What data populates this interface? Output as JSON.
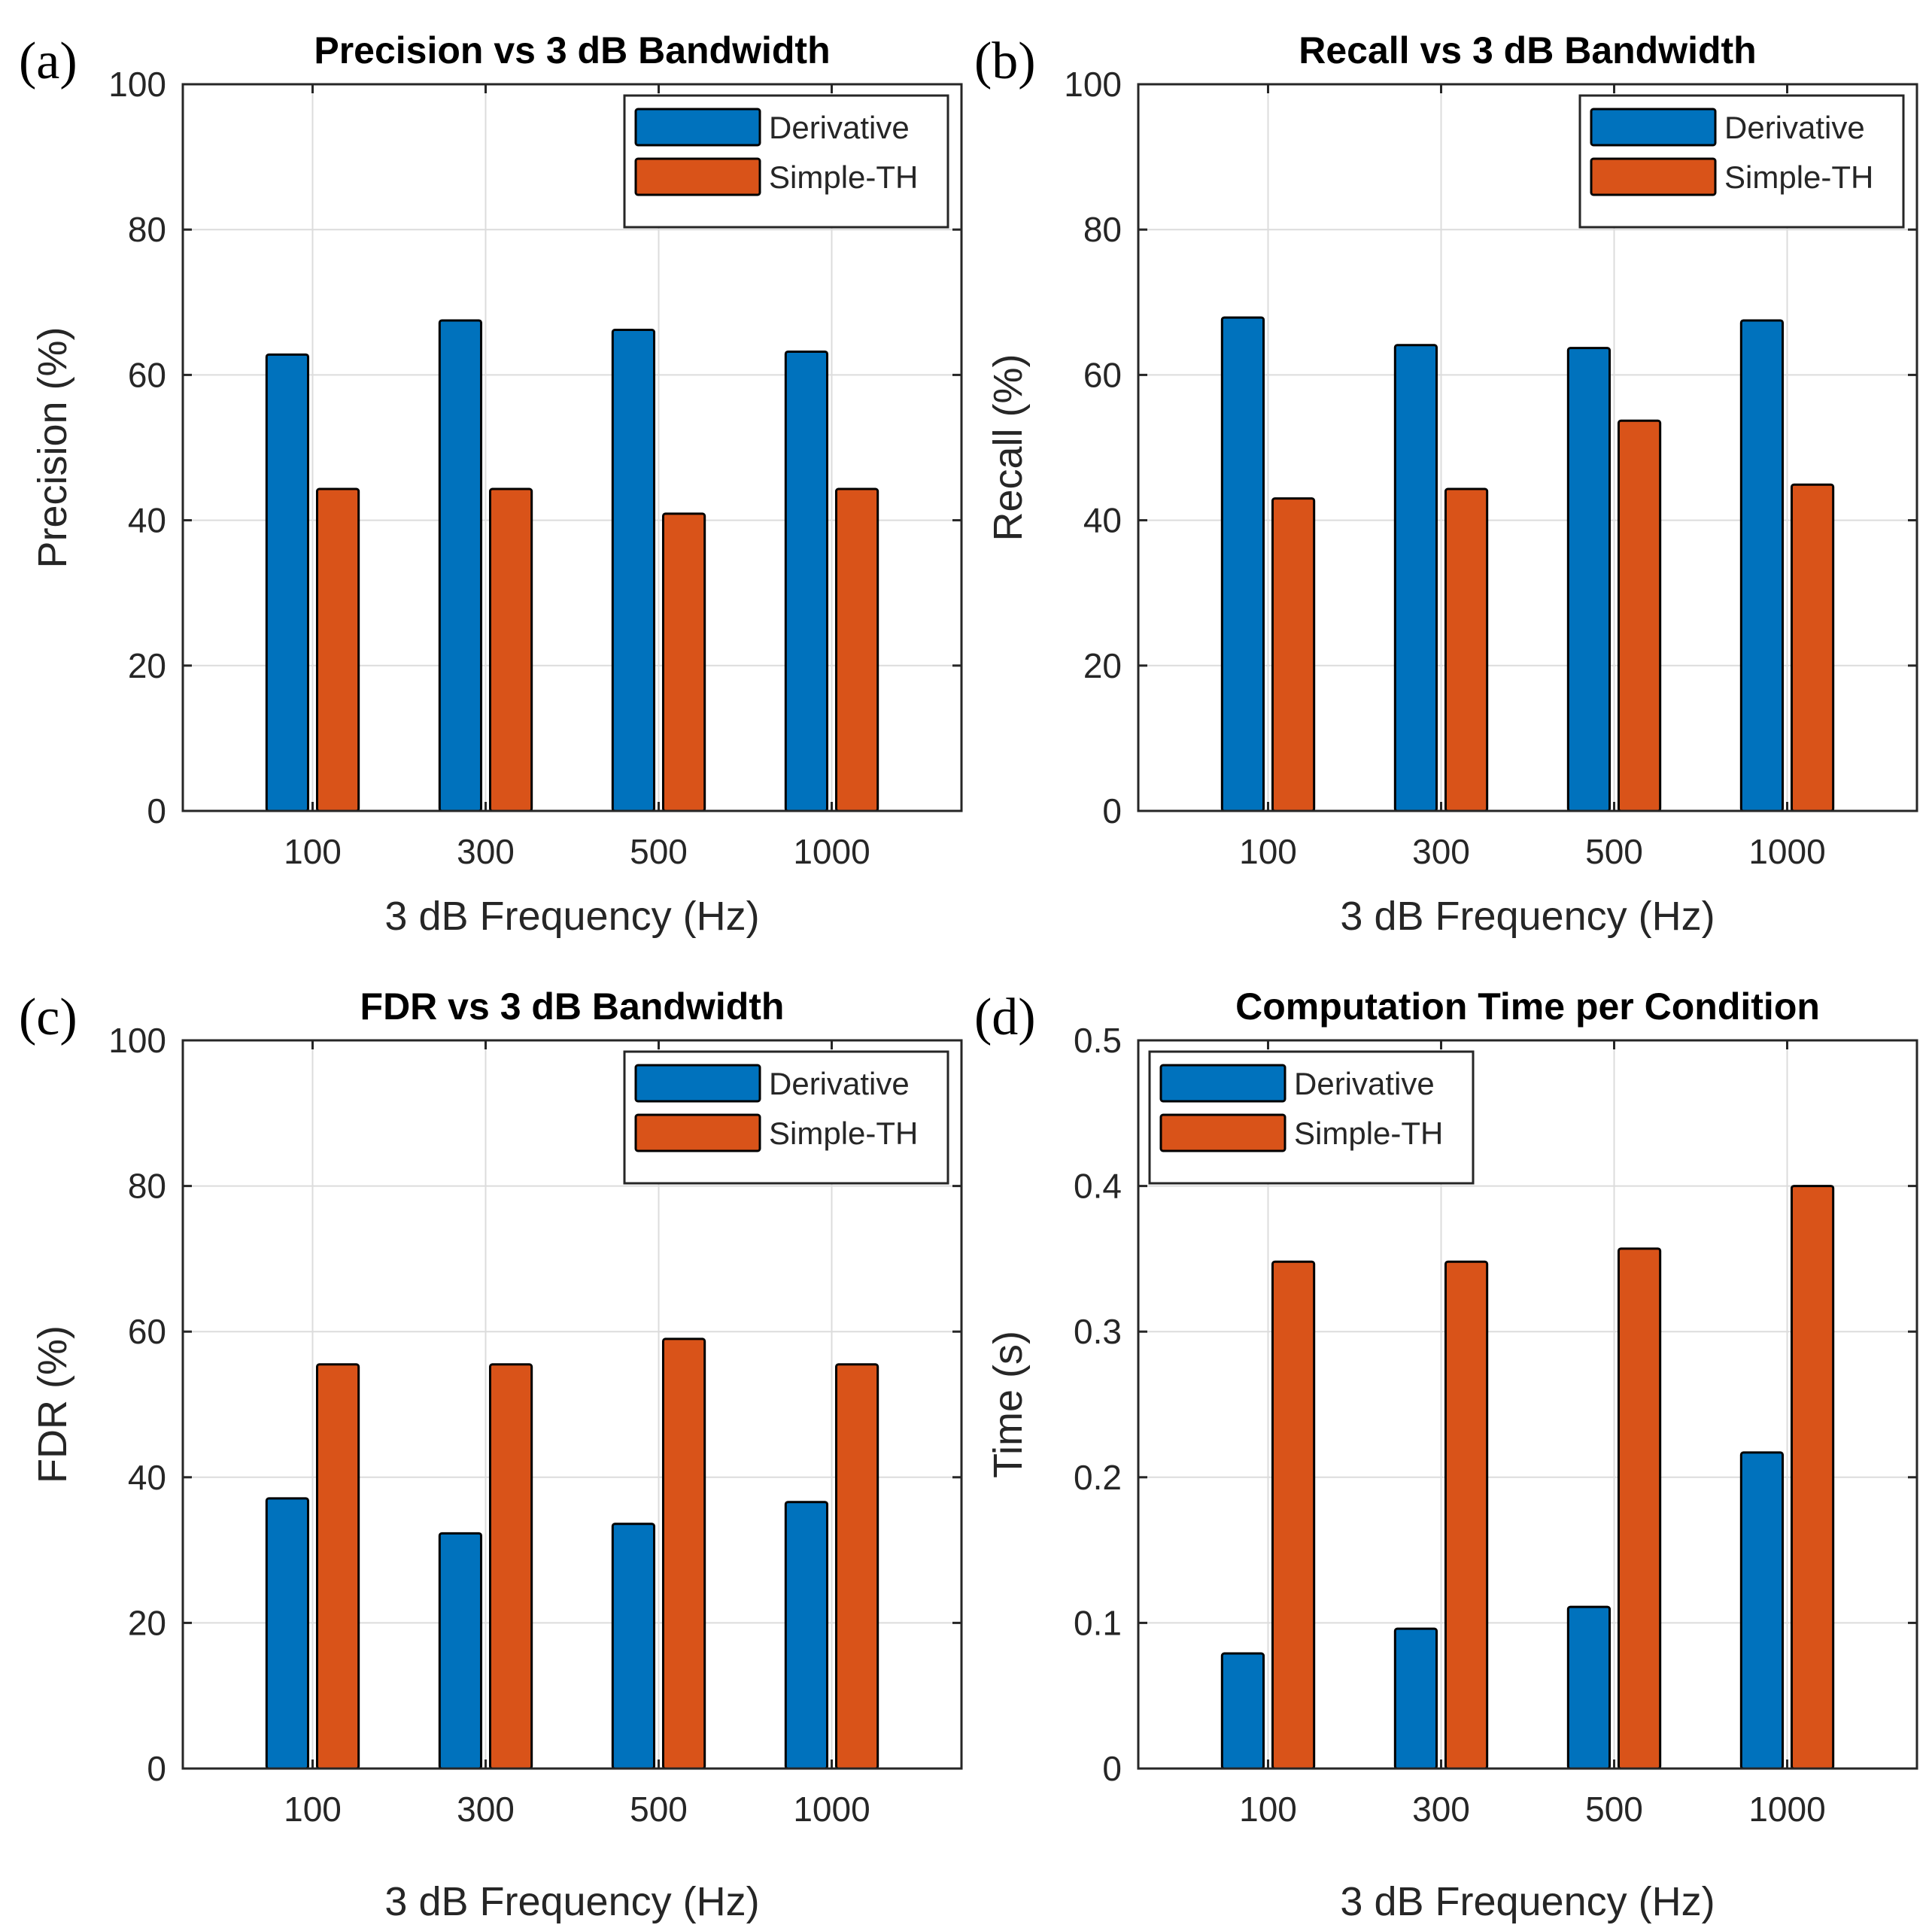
{
  "chart_data": [
    {
      "id": "a",
      "panel_label": "(a)",
      "type": "bar",
      "title": "Precision vs 3 dB Bandwidth",
      "xlabel": "3 dB Frequency (Hz)",
      "ylabel": "Precision (%)",
      "categories": [
        "100",
        "300",
        "500",
        "1000"
      ],
      "ylim": [
        0,
        100
      ],
      "yticks": [
        0,
        20,
        40,
        60,
        80,
        100
      ],
      "ytick_labels": [
        "0",
        "20",
        "40",
        "60",
        "80",
        "100"
      ],
      "grid": true,
      "legend_position": "top-right",
      "series": [
        {
          "name": "Derivative",
          "color": "#0072BD",
          "values": [
            62.8,
            67.5,
            66.2,
            63.2
          ]
        },
        {
          "name": "Simple-TH",
          "color": "#D95319",
          "values": [
            44.3,
            44.3,
            40.9,
            44.3
          ]
        }
      ]
    },
    {
      "id": "b",
      "panel_label": "(b)",
      "type": "bar",
      "title": "Recall vs 3 dB Bandwidth",
      "xlabel": "3 dB Frequency (Hz)",
      "ylabel": "Recall (%)",
      "categories": [
        "100",
        "300",
        "500",
        "1000"
      ],
      "ylim": [
        0,
        100
      ],
      "yticks": [
        0,
        20,
        40,
        60,
        80,
        100
      ],
      "ytick_labels": [
        "0",
        "20",
        "40",
        "60",
        "80",
        "100"
      ],
      "grid": true,
      "legend_position": "top-right",
      "series": [
        {
          "name": "Derivative",
          "color": "#0072BD",
          "values": [
            67.9,
            64.1,
            63.7,
            67.5
          ]
        },
        {
          "name": "Simple-TH",
          "color": "#D95319",
          "values": [
            43.0,
            44.3,
            53.7,
            44.9
          ]
        }
      ]
    },
    {
      "id": "c",
      "panel_label": "(c)",
      "type": "bar",
      "title": "FDR vs 3 dB Bandwidth",
      "xlabel": "3 dB Frequency (Hz)",
      "ylabel": "FDR (%)",
      "categories": [
        "100",
        "300",
        "500",
        "1000"
      ],
      "ylim": [
        0,
        100
      ],
      "yticks": [
        0,
        20,
        40,
        60,
        80,
        100
      ],
      "ytick_labels": [
        "0",
        "20",
        "40",
        "60",
        "80",
        "100"
      ],
      "grid": true,
      "legend_position": "top-right",
      "series": [
        {
          "name": "Derivative",
          "color": "#0072BD",
          "values": [
            37.1,
            32.3,
            33.6,
            36.6
          ]
        },
        {
          "name": "Simple-TH",
          "color": "#D95319",
          "values": [
            55.5,
            55.5,
            59.0,
            55.5
          ]
        }
      ]
    },
    {
      "id": "d",
      "panel_label": "(d)",
      "type": "bar",
      "title": "Computation Time per Condition",
      "xlabel": "3 dB Frequency (Hz)",
      "ylabel": "Time (s)",
      "categories": [
        "100",
        "300",
        "500",
        "1000"
      ],
      "ylim": [
        0,
        0.5
      ],
      "yticks": [
        0,
        0.1,
        0.2,
        0.3,
        0.4,
        0.5
      ],
      "ytick_labels": [
        "0",
        "0.1",
        "0.2",
        "0.3",
        "0.4",
        "0.5"
      ],
      "grid": true,
      "legend_position": "top-left",
      "series": [
        {
          "name": "Derivative",
          "color": "#0072BD",
          "values": [
            0.079,
            0.096,
            0.111,
            0.217
          ]
        },
        {
          "name": "Simple-TH",
          "color": "#D95319",
          "values": [
            0.348,
            0.348,
            0.357,
            0.4
          ]
        }
      ]
    }
  ]
}
